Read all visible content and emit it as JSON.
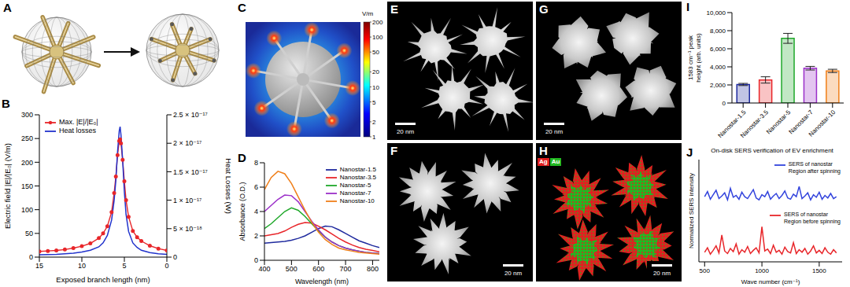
{
  "chart_data": [
    {
      "panel": "B",
      "type": "line",
      "x": [
        15,
        14,
        13,
        12,
        11,
        10,
        9,
        8,
        7.5,
        7,
        6.5,
        6.2,
        6,
        5.8,
        5.6,
        5.5,
        5.4,
        5.2,
        5,
        4.8,
        4.5,
        4,
        3.5,
        3,
        2,
        1,
        0
      ],
      "xlim": [
        15,
        0
      ],
      "xticks": [
        15,
        10,
        5,
        0
      ],
      "x_label": "Exposed branch length (nm)",
      "ylim": [
        0,
        300
      ],
      "yticks": [
        0,
        50,
        100,
        150,
        200,
        250,
        300
      ],
      "y_label": "Electric field |E|/|E₀| (V/m)",
      "y2lim": [
        0,
        2.5e-17
      ],
      "y2ticks": [
        0,
        {
          "value": 5e-18,
          "label": "5 × 10⁻¹⁸"
        },
        {
          "value": 1e-17,
          "label": "1 × 10⁻¹⁷"
        },
        {
          "value": 1.5e-17,
          "label": "1.5 × 10⁻¹⁷"
        },
        {
          "value": 2e-17,
          "label": "2 × 10⁻¹⁷"
        },
        {
          "value": 2.5e-17,
          "label": "2.5 × 10⁻¹⁷"
        }
      ],
      "y2_label": "Heat Losses (W)",
      "legend": "upper left",
      "series": [
        {
          "name": "Max. |E|/|E₀|",
          "color": "#e8262a",
          "marker": "circle",
          "values": [
            12,
            13,
            14,
            16,
            19,
            23,
            29,
            40,
            50,
            65,
            95,
            135,
            170,
            215,
            245,
            248,
            240,
            205,
            160,
            120,
            85,
            55,
            42,
            34,
            24,
            18,
            14
          ]
        },
        {
          "name": "Heat losses",
          "color": "#2233cc",
          "axis": "y2",
          "values": [
            4e-19,
            4.5e-19,
            5e-19,
            6e-19,
            7e-19,
            9e-19,
            1.2e-18,
            1.8e-18,
            2.5e-18,
            3.8e-18,
            6.5e-18,
            1e-17,
            1.35e-17,
            1.85e-17,
            2.22e-17,
            2.29e-17,
            2.15e-17,
            1.7e-17,
            1.15e-17,
            7.5e-18,
            4.5e-18,
            2.5e-18,
            1.7e-18,
            1.2e-18,
            8e-19,
            6e-19,
            5e-19
          ]
        }
      ]
    },
    {
      "panel": "D",
      "type": "line",
      "x": [
        400,
        425,
        450,
        475,
        500,
        525,
        550,
        575,
        600,
        625,
        650,
        675,
        700,
        725,
        750,
        775,
        800,
        825
      ],
      "xlim": [
        400,
        825
      ],
      "xticks": [
        400,
        500,
        600,
        700,
        800
      ],
      "x_label": "Wavelength (nm)",
      "ylim": [
        0,
        8
      ],
      "yticks": [
        0,
        2,
        4,
        6,
        8
      ],
      "y_label": "Absorbance (O.D.)",
      "legend": "upper right",
      "series": [
        {
          "name": "Nanostar-1.5",
          "color": "#1f2a9e",
          "values": [
            1.4,
            1.45,
            1.5,
            1.55,
            1.65,
            1.8,
            2.0,
            2.3,
            2.6,
            2.8,
            2.75,
            2.5,
            2.2,
            1.9,
            1.6,
            1.4,
            1.2,
            1.05
          ]
        },
        {
          "name": "Nanostar-3.5",
          "color": "#e8262a",
          "values": [
            2.0,
            2.1,
            2.2,
            2.4,
            2.7,
            2.95,
            3.1,
            3.05,
            2.8,
            2.5,
            2.15,
            1.8,
            1.5,
            1.25,
            1.05,
            0.9,
            0.8,
            0.7
          ]
        },
        {
          "name": "Nanostar-5",
          "color": "#1fa82a",
          "values": [
            2.6,
            3.0,
            3.5,
            4.0,
            4.3,
            4.1,
            3.6,
            3.0,
            2.4,
            1.9,
            1.5,
            1.2,
            1.0,
            0.85,
            0.75,
            0.65,
            0.6,
            0.55
          ]
        },
        {
          "name": "Nanostar-7",
          "color": "#9b2fc9",
          "values": [
            4.0,
            4.5,
            5.0,
            5.35,
            5.3,
            4.8,
            4.0,
            3.2,
            2.5,
            1.9,
            1.5,
            1.2,
            1.0,
            0.85,
            0.75,
            0.65,
            0.6,
            0.55
          ]
        },
        {
          "name": "Nanostar-10",
          "color": "#f07f1a",
          "values": [
            5.8,
            6.8,
            7.3,
            7.1,
            6.3,
            5.2,
            4.1,
            3.1,
            2.3,
            1.7,
            1.3,
            1.0,
            0.85,
            0.75,
            0.65,
            0.6,
            0.55,
            0.5
          ]
        }
      ]
    },
    {
      "panel": "I",
      "type": "bar",
      "categories": [
        "Nanostar-1.5",
        "Nanostar-3.5",
        "Nanostar-5",
        "Nanostar-7",
        "Nanostar-10"
      ],
      "values": [
        2050,
        2550,
        7150,
        3850,
        3550
      ],
      "errors": [
        120,
        350,
        550,
        200,
        180
      ],
      "colors": [
        "#1f2a9e",
        "#e8262a",
        "#1fa82a",
        "#9b2fc9",
        "#f07f1a"
      ],
      "y_label": "1583 cm⁻¹ peak height (arb. units)",
      "ylim": [
        0,
        10000
      ],
      "yticks": [
        0,
        {
          "value": 2000,
          "label": "2,000"
        },
        {
          "value": 4000,
          "label": "4,000"
        },
        {
          "value": 6000,
          "label": "6,000"
        },
        {
          "value": 8000,
          "label": "8,000"
        },
        {
          "value": 10000,
          "label": "10,000"
        }
      ]
    },
    {
      "panel": "J",
      "type": "line",
      "title": "On-disk SERS verification of EV enrichment",
      "x": [
        500,
        525,
        550,
        575,
        600,
        625,
        650,
        675,
        700,
        725,
        750,
        775,
        800,
        825,
        850,
        875,
        900,
        925,
        950,
        975,
        1000,
        1025,
        1050,
        1075,
        1100,
        1125,
        1150,
        1175,
        1200,
        1225,
        1250,
        1275,
        1300,
        1325,
        1350,
        1375,
        1400,
        1425,
        1450,
        1475,
        1500,
        1525,
        1550,
        1575,
        1600,
        1625,
        1650
      ],
      "xlim": [
        450,
        1700
      ],
      "xticks": [
        500,
        1000,
        1500
      ],
      "x_label": "Wave number (cm⁻¹)",
      "ylim": [
        0,
        1.6
      ],
      "y_label": "Normalized SERS intensity",
      "tick_labels": "x",
      "legend": "right",
      "series": [
        {
          "name": "SERS of nanostar Region after spinning",
          "color": "#3344dd",
          "values": [
            1.02,
            1.1,
            0.98,
            1.05,
            1.12,
            0.99,
            1.03,
            1.08,
            0.97,
            1.15,
            1.01,
            1.04,
            0.98,
            1.09,
            1.02,
            0.99,
            1.06,
            1.13,
            1.0,
            0.97,
            1.05,
            1.02,
            1.1,
            0.98,
            1.03,
            1.07,
            0.99,
            1.04,
            1.11,
            1.0,
            0.98,
            1.06,
            1.02,
            1.18,
            0.99,
            1.03,
            1.08,
            0.97,
            1.05,
            1.01,
            1.09,
            0.98,
            1.04,
            1.0,
            1.07,
            0.99,
            1.02
          ]
        },
        {
          "name": "SERS of nanostar Region before spinning",
          "color": "#e8262a",
          "values": [
            0.15,
            0.22,
            0.12,
            0.18,
            0.25,
            0.14,
            0.42,
            0.17,
            0.13,
            0.21,
            0.16,
            0.28,
            0.12,
            0.19,
            0.15,
            0.24,
            0.13,
            0.18,
            0.22,
            0.14,
            0.55,
            0.17,
            0.2,
            0.13,
            0.26,
            0.15,
            0.18,
            0.12,
            0.23,
            0.16,
            0.14,
            0.3,
            0.13,
            0.19,
            0.15,
            0.21,
            0.12,
            0.17,
            0.25,
            0.14,
            0.18,
            0.13,
            0.22,
            0.15,
            0.12,
            0.19,
            0.14
          ]
        }
      ]
    }
  ],
  "panels": {
    "A": {
      "label": "A"
    },
    "C": {
      "label": "C",
      "colorbar": {
        "range": [
          1,
          200
        ],
        "ticks": [
          1,
          2,
          5,
          10,
          20,
          50,
          100,
          200
        ],
        "unit": "V/m",
        "log": true
      }
    },
    "E": {
      "label": "E",
      "scale_bar": "20 nm"
    },
    "F": {
      "label": "F",
      "scale_bar": "20 nm"
    },
    "G": {
      "label": "G",
      "scale_bar": "20 nm"
    },
    "H": {
      "label": "H",
      "scale_bar": "20 nm",
      "channels": [
        {
          "name": "Ag",
          "color": "#e02020"
        },
        {
          "name": "Au",
          "color": "#22b822"
        }
      ]
    }
  }
}
